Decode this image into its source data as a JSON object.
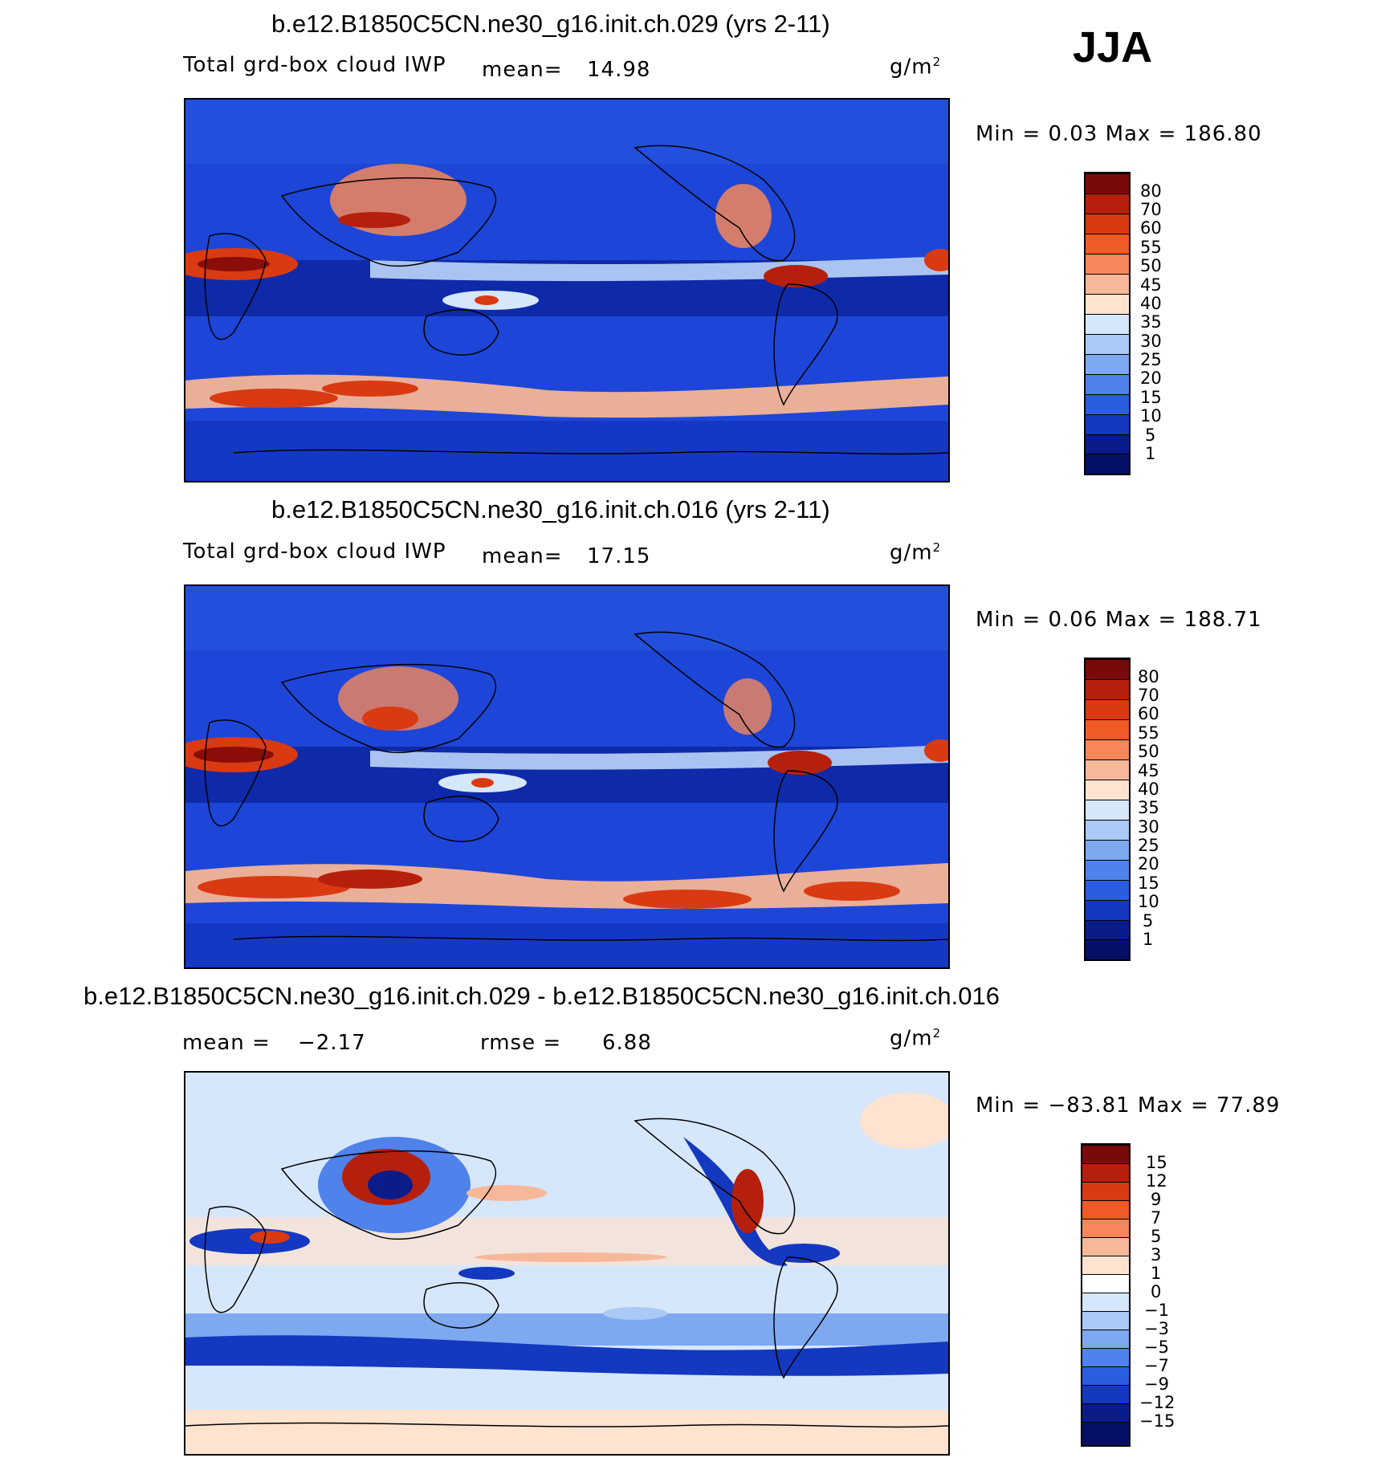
{
  "season": "JJA",
  "panels": [
    {
      "title": "b.e12.B1850C5CN.ne30_g16.init.ch.029 (yrs 2-11)",
      "variable": "Total grd-box cloud IWP",
      "mean_label": "mean=",
      "mean_value": "14.98",
      "units_base": "g/m",
      "units_exp": "2",
      "minmax": "Min =     0.03  Max  =  186.80",
      "colorbar_labels": [
        "80",
        "70",
        "60",
        "55",
        "50",
        "45",
        "40",
        "35",
        "30",
        "25",
        "20",
        "15",
        "10",
        "5",
        "1"
      ]
    },
    {
      "title": "b.e12.B1850C5CN.ne30_g16.init.ch.016 (yrs 2-11)",
      "variable": "Total grd-box cloud IWP",
      "mean_label": "mean=",
      "mean_value": "17.15",
      "units_base": "g/m",
      "units_exp": "2",
      "minmax": "Min =     0.06  Max  =  188.71",
      "colorbar_labels": [
        "80",
        "70",
        "60",
        "55",
        "50",
        "45",
        "40",
        "35",
        "30",
        "25",
        "20",
        "15",
        "10",
        "5",
        "1"
      ]
    },
    {
      "title": "b.e12.B1850C5CN.ne30_g16.init.ch.029 - b.e12.B1850C5CN.ne30_g16.init.ch.016",
      "mean_label": "mean =",
      "mean_value": "−2.17",
      "rmse_label": "rmse =",
      "rmse_value": "6.88",
      "units_base": "g/m",
      "units_exp": "2",
      "minmax": "Min  =  −83.81  Max  =    77.89",
      "colorbar_labels": [
        "15",
        "12",
        "9",
        "7",
        "5",
        "3",
        "1",
        "0",
        "−1",
        "−3",
        "−5",
        "−7",
        "−9",
        "−12",
        "−15"
      ]
    }
  ],
  "colors": {
    "abs_scale": [
      "#7a0a0a",
      "#b5200c",
      "#d93a12",
      "#f05a24",
      "#f5875a",
      "#f7b89a",
      "#fde3d0",
      "#ffffff",
      "#d6e7fb",
      "#aac9f5",
      "#7ea8f0",
      "#4f82ea",
      "#2a5ee0",
      "#1438c0",
      "#0a1b8a"
    ],
    "diff_scale": [
      "#7a0a0a",
      "#b5200c",
      "#d93a12",
      "#f05a24",
      "#f5875a",
      "#f7b89a",
      "#fde3d0",
      "#ffffff",
      "#d6e7fb",
      "#aac9f5",
      "#7ea8f0",
      "#4f82ea",
      "#2a5ee0",
      "#1438c0",
      "#0a1b8a",
      "#051064"
    ]
  },
  "chart_data": [
    {
      "type": "heatmap",
      "title": "b.e12.B1850C5CN.ne30_g16.init.ch.029 (yrs 2-11)",
      "subtitle": "Total grd-box cloud IWP",
      "units": "g/m2",
      "mean": 14.98,
      "min": 0.03,
      "max": 186.8,
      "levels": [
        1,
        5,
        10,
        15,
        20,
        25,
        30,
        35,
        40,
        45,
        50,
        55,
        60,
        70,
        80
      ]
    },
    {
      "type": "heatmap",
      "title": "b.e12.B1850C5CN.ne30_g16.init.ch.016 (yrs 2-11)",
      "subtitle": "Total grd-box cloud IWP",
      "units": "g/m2",
      "mean": 17.15,
      "min": 0.06,
      "max": 188.71,
      "levels": [
        1,
        5,
        10,
        15,
        20,
        25,
        30,
        35,
        40,
        45,
        50,
        55,
        60,
        70,
        80
      ]
    },
    {
      "type": "heatmap",
      "title": "b.e12.B1850C5CN.ne30_g16.init.ch.029 - b.e12.B1850C5CN.ne30_g16.init.ch.016",
      "units": "g/m2",
      "mean": -2.17,
      "rmse": 6.88,
      "min": -83.81,
      "max": 77.89,
      "levels": [
        -15,
        -12,
        -9,
        -7,
        -5,
        -3,
        -1,
        0,
        1,
        3,
        5,
        7,
        9,
        12,
        15
      ]
    }
  ]
}
